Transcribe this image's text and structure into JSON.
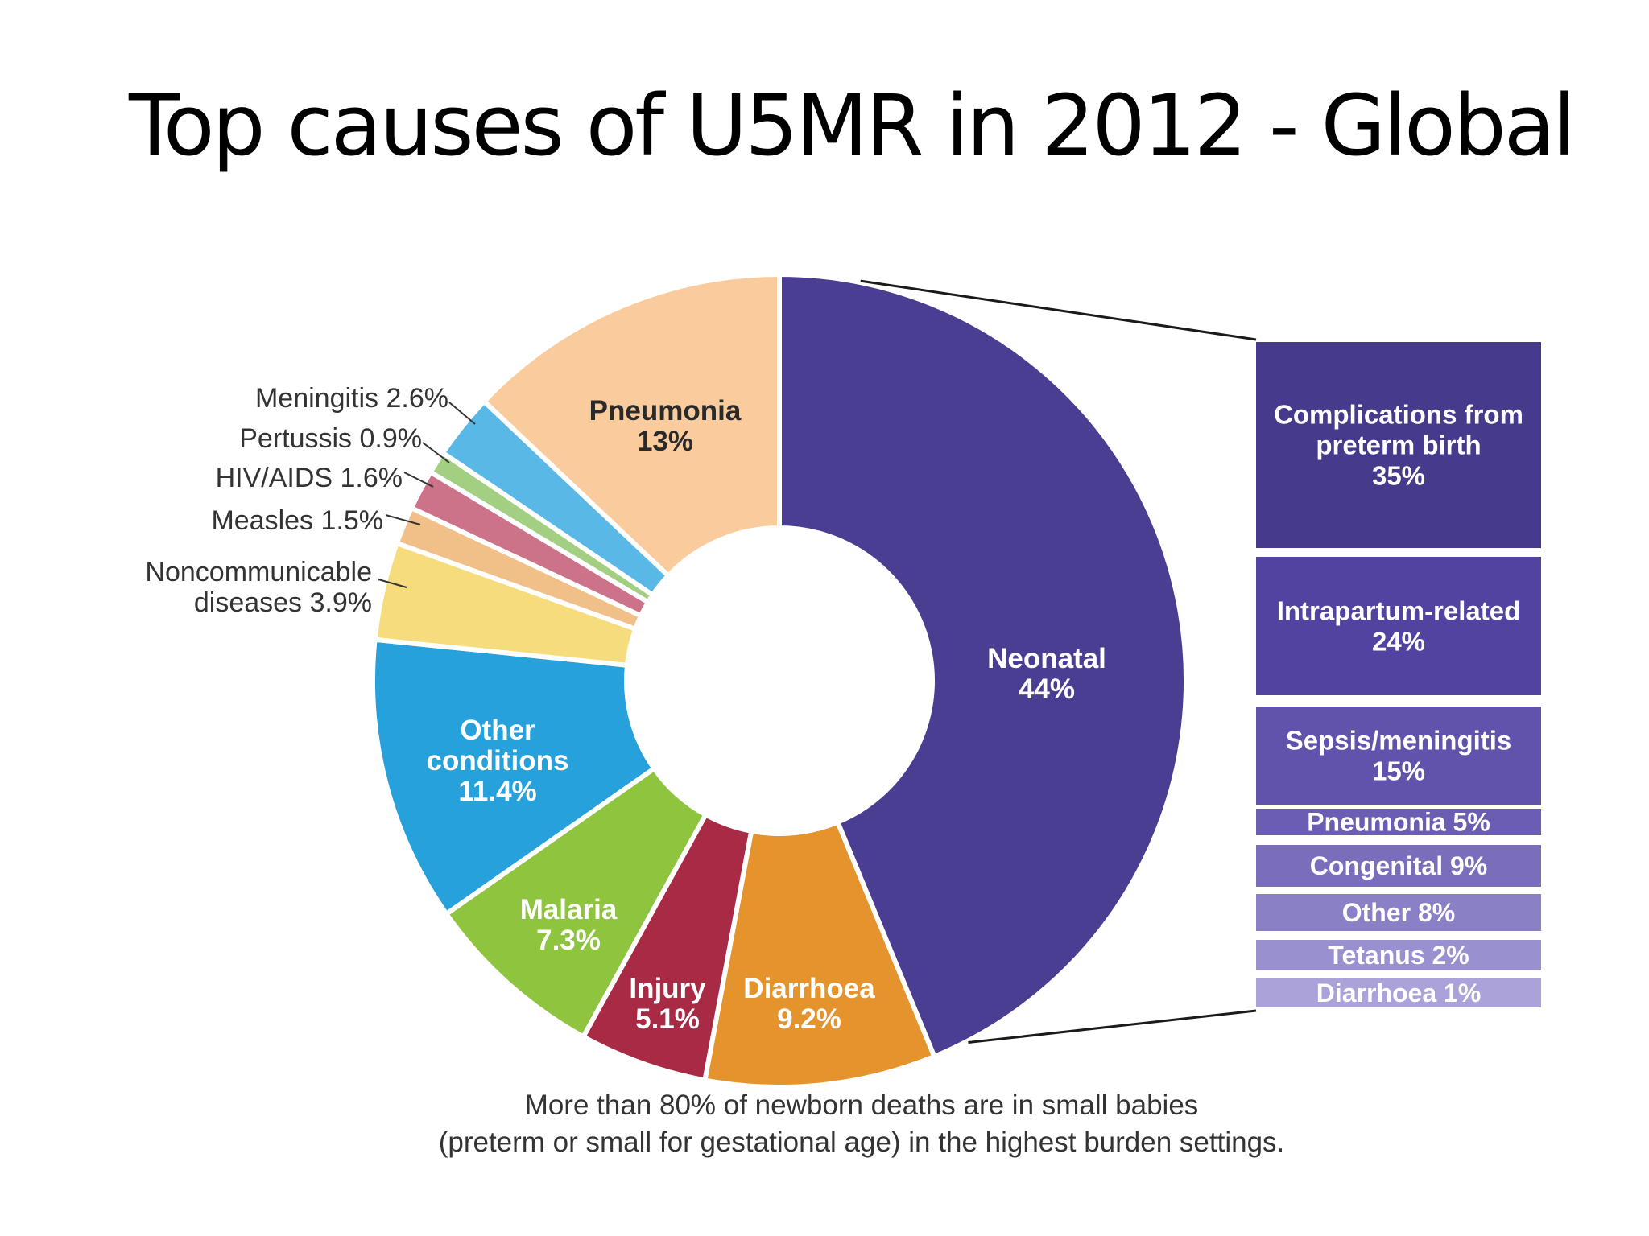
{
  "slide": {
    "title": "Top causes of U5MR in 2012 - Global"
  },
  "chart_data": {
    "type": "pie",
    "style": "donut",
    "slices": [
      {
        "label": "Neonatal",
        "value_text": "44%",
        "value": 44,
        "color": "#4a3e93",
        "label_placement": "inside"
      },
      {
        "label": "Diarrhoea",
        "value_text": "9.2%",
        "value": 9.2,
        "color": "#e4932d",
        "label_placement": "inside"
      },
      {
        "label": "Injury",
        "value_text": "5.1%",
        "value": 5.1,
        "color": "#a82a44",
        "label_placement": "inside"
      },
      {
        "label": "Malaria",
        "value_text": "7.3%",
        "value": 7.3,
        "color": "#8ec43e",
        "label_placement": "inside"
      },
      {
        "label": "Other conditions",
        "value_text": "11.4%",
        "value": 11.4,
        "color": "#27a1dc",
        "label_placement": "inside"
      },
      {
        "label": "Noncommunicable diseases",
        "value_text": "3.9%",
        "value": 3.9,
        "color": "#f6dc7c",
        "label_placement": "outside"
      },
      {
        "label": "Measles",
        "value_text": "1.5%",
        "value": 1.5,
        "color": "#f1c089",
        "label_placement": "outside"
      },
      {
        "label": "HIV/AIDS",
        "value_text": "1.6%",
        "value": 1.6,
        "color": "#cc7289",
        "label_placement": "outside"
      },
      {
        "label": "Pertussis",
        "value_text": "0.9%",
        "value": 0.9,
        "color": "#a3cf82",
        "label_placement": "outside"
      },
      {
        "label": "Meningitis",
        "value_text": "2.6%",
        "value": 2.6,
        "color": "#5ab8e7",
        "label_placement": "outside"
      },
      {
        "label": "Pneumonia",
        "value_text": "13%",
        "value": 13,
        "color": "#facb9c",
        "label_placement": "inside"
      }
    ],
    "breakdown": {
      "of": "Neonatal",
      "items": [
        {
          "label": "Complications from preterm birth",
          "value_text": "35%",
          "value": 35,
          "color": "#463a8c"
        },
        {
          "label": "Intrapartum-related",
          "value_text": "24%",
          "value": 24,
          "color": "#5343a0"
        },
        {
          "label": "Sepsis/meningitis",
          "value_text": "15%",
          "value": 15,
          "color": "#6152ac"
        },
        {
          "label": "Pneumonia",
          "value_text": "5%",
          "value": 5,
          "color": "#6a5db2"
        },
        {
          "label": "Congenital",
          "value_text": "9%",
          "value": 9,
          "color": "#7a6dbc"
        },
        {
          "label": "Other",
          "value_text": "8%",
          "value": 8,
          "color": "#8a80c6"
        },
        {
          "label": "Tetanus",
          "value_text": "2%",
          "value": 2,
          "color": "#9990cf"
        },
        {
          "label": "Diarrhoea",
          "value_text": "1%",
          "value": 1,
          "color": "#aaa2d9"
        }
      ]
    },
    "caption_lines": [
      "More than 80% of newborn deaths are in small babies",
      "(preterm or small for gestational age) in the highest burden settings."
    ]
  }
}
